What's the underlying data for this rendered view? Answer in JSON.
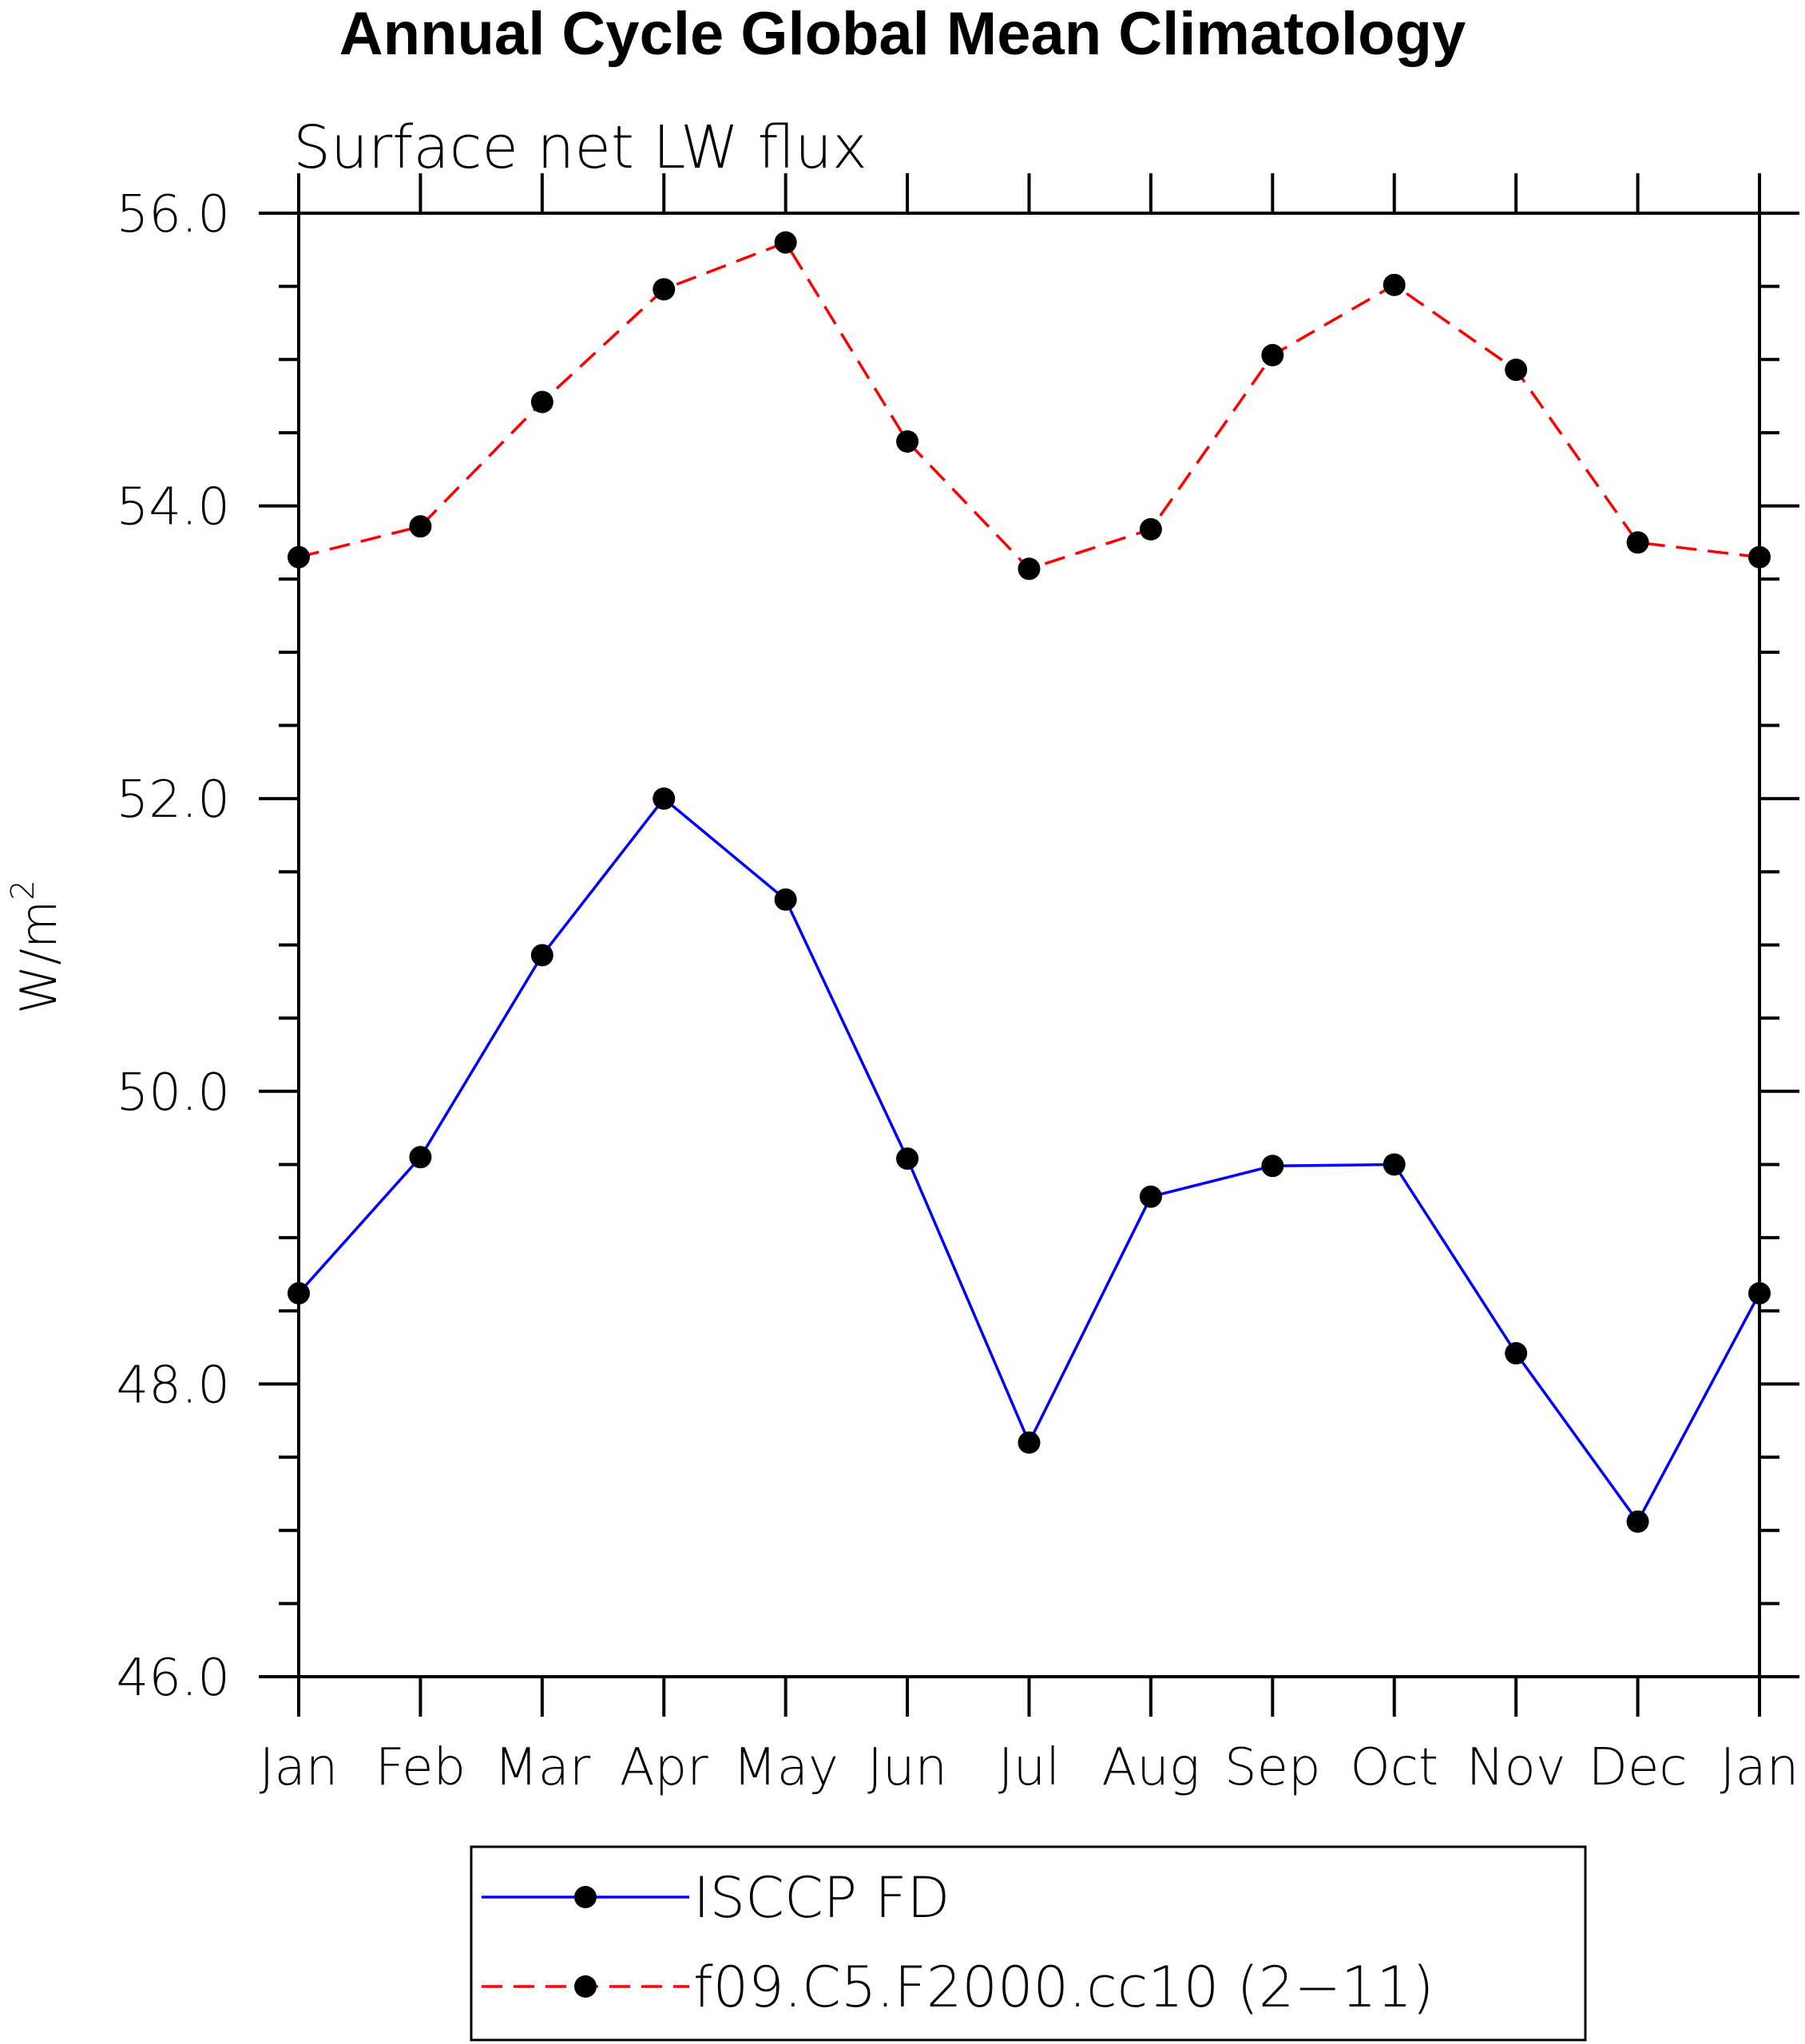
{
  "chart_data": {
    "type": "line",
    "title": "Annual Cycle Global Mean Climatology",
    "subtitle": "Surface net LW flux",
    "ylabel": "W/m",
    "ylabel_sup": "2",
    "categories": [
      "Jan",
      "Feb",
      "Mar",
      "Apr",
      "May",
      "Jun",
      "Jul",
      "Aug",
      "Sep",
      "Oct",
      "Nov",
      "Dec",
      "Jan"
    ],
    "ylim": [
      46.0,
      56.0
    ],
    "yticks": [
      "46.0",
      "48.0",
      "50.0",
      "52.0",
      "54.0",
      "56.0"
    ],
    "legend_position": "bottom",
    "series": [
      {
        "name": "ISCCP FD",
        "color": "#0000ff",
        "dash": "solid",
        "marker": "filled-circle",
        "values": [
          48.62,
          49.55,
          50.93,
          52.0,
          51.31,
          49.54,
          47.6,
          49.28,
          49.49,
          49.5,
          48.21,
          47.06,
          48.62
        ]
      },
      {
        "name": "f09.C5.F2000.cc10 (2−11)",
        "color": "#ff0000",
        "dash": "dashed",
        "marker": "filled-circle",
        "values": [
          53.65,
          53.86,
          54.71,
          55.48,
          55.8,
          54.44,
          53.57,
          53.84,
          55.03,
          55.51,
          54.93,
          53.75,
          53.65
        ]
      }
    ]
  }
}
